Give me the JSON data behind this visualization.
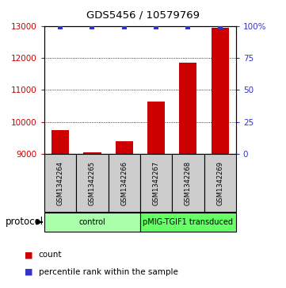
{
  "title": "GDS5456 / 10579769",
  "samples": [
    "GSM1342264",
    "GSM1342265",
    "GSM1342266",
    "GSM1342267",
    "GSM1342268",
    "GSM1342269"
  ],
  "counts": [
    9750,
    9060,
    9400,
    10650,
    11850,
    12950
  ],
  "percentile_ranks": [
    99,
    99,
    99,
    99,
    99,
    99
  ],
  "ylim_left": [
    9000,
    13000
  ],
  "ylim_right": [
    0,
    100
  ],
  "yticks_left": [
    9000,
    10000,
    11000,
    12000,
    13000
  ],
  "yticks_right": [
    0,
    25,
    50,
    75,
    100
  ],
  "bar_color": "#cc0000",
  "percentile_color": "#3333cc",
  "grid_color": "#000000",
  "groups": [
    {
      "label": "control",
      "samples_idx": [
        0,
        1,
        2
      ],
      "color": "#aaffaa"
    },
    {
      "label": "pMIG-TGIF1 transduced",
      "samples_idx": [
        3,
        4,
        5
      ],
      "color": "#66ff66"
    }
  ],
  "protocol_label": "protocol",
  "legend_count_label": "count",
  "legend_percentile_label": "percentile rank within the sample",
  "label_color_left": "#cc0000",
  "label_color_right": "#3333cc",
  "background_color": "#ffffff",
  "plot_bg_color": "#ffffff",
  "sample_box_color": "#cccccc",
  "bar_width": 0.55
}
